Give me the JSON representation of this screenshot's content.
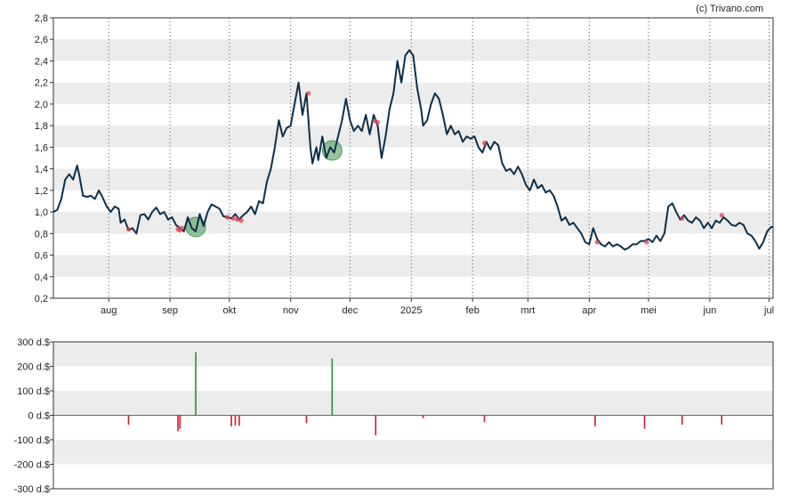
{
  "copyright": "(c) Trivano.com",
  "chart_data": [
    {
      "type": "line",
      "title": "",
      "ylim": [
        0.2,
        2.8
      ],
      "yticks": [
        "0,2",
        "0,4",
        "0,6",
        "0,8",
        "1,0",
        "1,2",
        "1,4",
        "1,6",
        "1,8",
        "2,0",
        "2,2",
        "2,4",
        "2,6",
        "2,8"
      ],
      "ytick_values": [
        0.2,
        0.4,
        0.6,
        0.8,
        1.0,
        1.2,
        1.4,
        1.6,
        1.8,
        2.0,
        2.2,
        2.4,
        2.6,
        2.8
      ],
      "xticks": [
        {
          "label": "aug",
          "date": "2024-08-01"
        },
        {
          "label": "sep",
          "date": "2024-09-01"
        },
        {
          "label": "okt",
          "date": "2024-10-01"
        },
        {
          "label": "nov",
          "date": "2024-11-01"
        },
        {
          "label": "dec",
          "date": "2024-12-01"
        },
        {
          "label": "2025",
          "date": "2025-01-01"
        },
        {
          "label": "feb",
          "date": "2025-02-01"
        },
        {
          "label": "mrt",
          "date": "2025-03-01"
        },
        {
          "label": "apr",
          "date": "2025-04-01"
        },
        {
          "label": "mei",
          "date": "2025-05-01"
        },
        {
          "label": "jun",
          "date": "2025-06-01"
        },
        {
          "label": "jul",
          "date": "2025-07-01"
        }
      ],
      "x_start": "2024-07-04",
      "x_end": "2025-07-03",
      "grid": "horizontal bands, dotted vertical at months",
      "line_color": "#0d2f4a",
      "series": [
        {
          "values": [
            [
              "2024-07-04",
              1.0
            ],
            [
              "2024-07-06",
              1.02
            ],
            [
              "2024-07-08",
              1.12
            ],
            [
              "2024-07-10",
              1.3
            ],
            [
              "2024-07-12",
              1.35
            ],
            [
              "2024-07-14",
              1.3
            ],
            [
              "2024-07-16",
              1.43
            ],
            [
              "2024-07-17",
              1.35
            ],
            [
              "2024-07-19",
              1.15
            ],
            [
              "2024-07-21",
              1.14
            ],
            [
              "2024-07-23",
              1.15
            ],
            [
              "2024-07-25",
              1.12
            ],
            [
              "2024-07-27",
              1.2
            ],
            [
              "2024-07-29",
              1.13
            ],
            [
              "2024-07-31",
              1.05
            ],
            [
              "2024-08-02",
              1.0
            ],
            [
              "2024-08-04",
              1.05
            ],
            [
              "2024-08-06",
              1.03
            ],
            [
              "2024-08-07",
              0.9
            ],
            [
              "2024-08-09",
              0.93
            ],
            [
              "2024-08-11",
              0.83
            ],
            [
              "2024-08-13",
              0.85
            ],
            [
              "2024-08-15",
              0.8
            ],
            [
              "2024-08-17",
              0.97
            ],
            [
              "2024-08-19",
              0.98
            ],
            [
              "2024-08-21",
              0.93
            ],
            [
              "2024-08-23",
              1.0
            ],
            [
              "2024-08-25",
              1.04
            ],
            [
              "2024-08-27",
              0.98
            ],
            [
              "2024-08-29",
              1.0
            ],
            [
              "2024-08-31",
              0.93
            ],
            [
              "2024-09-02",
              0.95
            ],
            [
              "2024-09-04",
              0.88
            ],
            [
              "2024-09-06",
              0.85
            ],
            [
              "2024-09-08",
              0.82
            ],
            [
              "2024-09-10",
              0.95
            ],
            [
              "2024-09-12",
              0.85
            ],
            [
              "2024-09-14",
              0.82
            ],
            [
              "2024-09-16",
              0.98
            ],
            [
              "2024-09-18",
              0.87
            ],
            [
              "2024-09-20",
              1.0
            ],
            [
              "2024-09-22",
              1.07
            ],
            [
              "2024-09-24",
              1.05
            ],
            [
              "2024-09-26",
              1.03
            ],
            [
              "2024-09-28",
              0.96
            ],
            [
              "2024-09-30",
              0.95
            ],
            [
              "2024-10-02",
              0.94
            ],
            [
              "2024-10-04",
              0.98
            ],
            [
              "2024-10-06",
              0.93
            ],
            [
              "2024-10-08",
              0.97
            ],
            [
              "2024-10-10",
              1.0
            ],
            [
              "2024-10-12",
              1.05
            ],
            [
              "2024-10-14",
              0.98
            ],
            [
              "2024-10-16",
              1.1
            ],
            [
              "2024-10-18",
              1.08
            ],
            [
              "2024-10-20",
              1.28
            ],
            [
              "2024-10-22",
              1.4
            ],
            [
              "2024-10-24",
              1.6
            ],
            [
              "2024-10-26",
              1.85
            ],
            [
              "2024-10-28",
              1.7
            ],
            [
              "2024-10-30",
              1.78
            ],
            [
              "2024-11-01",
              1.8
            ],
            [
              "2024-11-03",
              2.0
            ],
            [
              "2024-11-05",
              2.2
            ],
            [
              "2024-11-07",
              1.9
            ],
            [
              "2024-11-09",
              2.1
            ],
            [
              "2024-11-11",
              1.6
            ],
            [
              "2024-11-12",
              1.45
            ],
            [
              "2024-11-14",
              1.6
            ],
            [
              "2024-11-15",
              1.48
            ],
            [
              "2024-11-17",
              1.7
            ],
            [
              "2024-11-19",
              1.5
            ],
            [
              "2024-11-21",
              1.6
            ],
            [
              "2024-11-23",
              1.55
            ],
            [
              "2024-11-25",
              1.7
            ],
            [
              "2024-11-27",
              1.85
            ],
            [
              "2024-11-29",
              2.05
            ],
            [
              "2024-12-01",
              1.85
            ],
            [
              "2024-12-03",
              1.75
            ],
            [
              "2024-12-05",
              1.8
            ],
            [
              "2024-12-07",
              1.75
            ],
            [
              "2024-12-09",
              1.9
            ],
            [
              "2024-12-11",
              1.72
            ],
            [
              "2024-12-13",
              1.9
            ],
            [
              "2024-12-15",
              1.8
            ],
            [
              "2024-12-17",
              1.5
            ],
            [
              "2024-12-19",
              1.7
            ],
            [
              "2024-12-21",
              1.95
            ],
            [
              "2024-12-23",
              2.1
            ],
            [
              "2024-12-25",
              2.4
            ],
            [
              "2024-12-27",
              2.2
            ],
            [
              "2024-12-29",
              2.45
            ],
            [
              "2024-12-31",
              2.5
            ],
            [
              "2025-01-02",
              2.45
            ],
            [
              "2025-01-04",
              2.15
            ],
            [
              "2025-01-06",
              1.95
            ],
            [
              "2025-01-07",
              1.8
            ],
            [
              "2025-01-09",
              1.85
            ],
            [
              "2025-01-11",
              2.0
            ],
            [
              "2025-01-13",
              2.1
            ],
            [
              "2025-01-15",
              2.05
            ],
            [
              "2025-01-17",
              1.9
            ],
            [
              "2025-01-19",
              1.72
            ],
            [
              "2025-01-21",
              1.8
            ],
            [
              "2025-01-23",
              1.72
            ],
            [
              "2025-01-25",
              1.75
            ],
            [
              "2025-01-27",
              1.65
            ],
            [
              "2025-01-29",
              1.7
            ],
            [
              "2025-01-31",
              1.68
            ],
            [
              "2025-02-02",
              1.7
            ],
            [
              "2025-02-04",
              1.6
            ],
            [
              "2025-02-06",
              1.55
            ],
            [
              "2025-02-08",
              1.65
            ],
            [
              "2025-02-10",
              1.58
            ],
            [
              "2025-02-12",
              1.65
            ],
            [
              "2025-02-14",
              1.62
            ],
            [
              "2025-02-16",
              1.45
            ],
            [
              "2025-02-18",
              1.38
            ],
            [
              "2025-02-20",
              1.4
            ],
            [
              "2025-02-22",
              1.35
            ],
            [
              "2025-02-24",
              1.42
            ],
            [
              "2025-02-26",
              1.35
            ],
            [
              "2025-02-28",
              1.25
            ],
            [
              "2025-03-02",
              1.2
            ],
            [
              "2025-03-04",
              1.3
            ],
            [
              "2025-03-06",
              1.22
            ],
            [
              "2025-03-08",
              1.25
            ],
            [
              "2025-03-10",
              1.18
            ],
            [
              "2025-03-12",
              1.2
            ],
            [
              "2025-03-14",
              1.15
            ],
            [
              "2025-03-16",
              1.05
            ],
            [
              "2025-03-18",
              0.92
            ],
            [
              "2025-03-20",
              0.95
            ],
            [
              "2025-03-22",
              0.88
            ],
            [
              "2025-03-24",
              0.9
            ],
            [
              "2025-03-26",
              0.85
            ],
            [
              "2025-03-28",
              0.8
            ],
            [
              "2025-03-30",
              0.72
            ],
            [
              "2025-04-01",
              0.7
            ],
            [
              "2025-04-03",
              0.85
            ],
            [
              "2025-04-05",
              0.75
            ],
            [
              "2025-04-07",
              0.7
            ],
            [
              "2025-04-09",
              0.68
            ],
            [
              "2025-04-11",
              0.72
            ],
            [
              "2025-04-13",
              0.68
            ],
            [
              "2025-04-15",
              0.7
            ],
            [
              "2025-04-17",
              0.68
            ],
            [
              "2025-04-19",
              0.65
            ],
            [
              "2025-04-21",
              0.67
            ],
            [
              "2025-04-23",
              0.7
            ],
            [
              "2025-04-25",
              0.7
            ],
            [
              "2025-04-27",
              0.73
            ],
            [
              "2025-04-29",
              0.73
            ],
            [
              "2025-05-01",
              0.75
            ],
            [
              "2025-05-03",
              0.72
            ],
            [
              "2025-05-05",
              0.78
            ],
            [
              "2025-05-07",
              0.73
            ],
            [
              "2025-05-09",
              0.8
            ],
            [
              "2025-05-11",
              1.05
            ],
            [
              "2025-05-13",
              1.08
            ],
            [
              "2025-05-15",
              1.0
            ],
            [
              "2025-05-17",
              0.93
            ],
            [
              "2025-05-19",
              0.97
            ],
            [
              "2025-05-21",
              0.92
            ],
            [
              "2025-05-23",
              0.9
            ],
            [
              "2025-05-25",
              0.95
            ],
            [
              "2025-05-27",
              0.92
            ],
            [
              "2025-05-29",
              0.85
            ],
            [
              "2025-05-31",
              0.9
            ],
            [
              "2025-06-02",
              0.85
            ],
            [
              "2025-06-04",
              0.92
            ],
            [
              "2025-06-06",
              0.9
            ],
            [
              "2025-06-08",
              0.95
            ],
            [
              "2025-06-10",
              0.92
            ],
            [
              "2025-06-12",
              0.88
            ],
            [
              "2025-06-14",
              0.87
            ],
            [
              "2025-06-16",
              0.9
            ],
            [
              "2025-06-18",
              0.88
            ],
            [
              "2025-06-20",
              0.8
            ],
            [
              "2025-06-22",
              0.78
            ],
            [
              "2025-06-24",
              0.73
            ],
            [
              "2025-06-26",
              0.66
            ],
            [
              "2025-06-28",
              0.72
            ],
            [
              "2025-06-30",
              0.82
            ],
            [
              "2025-07-02",
              0.86
            ],
            [
              "2025-07-03",
              0.86
            ]
          ]
        }
      ],
      "green_circles": [
        {
          "date": "2024-09-14",
          "value": 0.86
        },
        {
          "date": "2024-11-22",
          "value": 1.57
        }
      ],
      "red_dots": [
        {
          "date": "2024-08-11",
          "value": 0.84
        },
        {
          "date": "2024-09-05",
          "value": 0.84
        },
        {
          "date": "2024-09-06",
          "value": 0.83
        },
        {
          "date": "2024-09-07",
          "value": 0.85
        },
        {
          "date": "2024-09-30",
          "value": 0.95
        },
        {
          "date": "2024-10-03",
          "value": 0.94
        },
        {
          "date": "2024-10-05",
          "value": 0.93
        },
        {
          "date": "2024-10-07",
          "value": 0.92
        },
        {
          "date": "2024-11-10",
          "value": 2.1
        },
        {
          "date": "2024-12-14",
          "value": 1.84
        },
        {
          "date": "2024-12-15",
          "value": 1.83
        },
        {
          "date": "2025-02-07",
          "value": 1.64
        },
        {
          "date": "2025-04-05",
          "value": 0.72
        },
        {
          "date": "2025-04-30",
          "value": 0.72
        },
        {
          "date": "2025-05-18",
          "value": 0.94
        },
        {
          "date": "2025-06-07",
          "value": 0.97
        }
      ]
    },
    {
      "type": "bar",
      "title": "",
      "ylim": [
        -300,
        300
      ],
      "yticks": [
        "300 d.$",
        "200 d.$",
        "100 d.$",
        "0 d.$",
        "-100 d.$",
        "-200 d.$",
        "-300 d.$"
      ],
      "ytick_values": [
        300,
        200,
        100,
        0,
        -100,
        -200,
        -300
      ],
      "bars": [
        {
          "date": "2024-08-11",
          "value": -38
        },
        {
          "date": "2024-09-05",
          "value": -65
        },
        {
          "date": "2024-09-06",
          "value": -55
        },
        {
          "date": "2024-09-14",
          "value": 258
        },
        {
          "date": "2024-10-02",
          "value": -45
        },
        {
          "date": "2024-10-04",
          "value": -42
        },
        {
          "date": "2024-10-06",
          "value": -42
        },
        {
          "date": "2024-11-09",
          "value": -32
        },
        {
          "date": "2024-11-22",
          "value": 232
        },
        {
          "date": "2024-12-14",
          "value": -82
        },
        {
          "date": "2025-01-07",
          "value": -12
        },
        {
          "date": "2025-02-07",
          "value": -28
        },
        {
          "date": "2025-04-04",
          "value": -45
        },
        {
          "date": "2025-04-29",
          "value": -55
        },
        {
          "date": "2025-05-18",
          "value": -38
        },
        {
          "date": "2025-06-07",
          "value": -38
        }
      ],
      "positive_color": "#2e8b3a",
      "negative_color": "#d11a2a"
    }
  ]
}
